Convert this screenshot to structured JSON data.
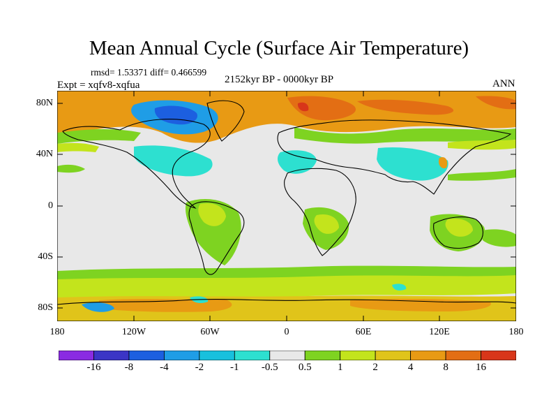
{
  "title": "Mean Annual Cycle (Surface Air Temperature)",
  "stats_text": "rmsd= 1.53371 diff= 0.466599",
  "experiment_text": "Expt = xqfv8-xqfua",
  "period_text": "2152kyr BP - 0000kyr BP",
  "season_text": "ANN",
  "lat_ticks": [
    "80N",
    "40N",
    "0",
    "40S",
    "80S"
  ],
  "lon_ticks": [
    "180",
    "120W",
    "60W",
    "0",
    "60E",
    "120E",
    "180"
  ],
  "colorbar": {
    "labels": [
      "-16",
      "-8",
      "-4",
      "-2",
      "-1",
      "-0.5",
      "0.5",
      "1",
      "2",
      "4",
      "8",
      "16"
    ],
    "colors": [
      "#8a2be2",
      "#3b35c6",
      "#1c5fe0",
      "#1f9de6",
      "#18c0dd",
      "#2de0d0",
      "#e8e8e8",
      "#7ed321",
      "#c3e41c",
      "#e0c41a",
      "#e89a14",
      "#e36e14",
      "#d8361a"
    ]
  },
  "colors": {
    "land_background": "#e8e8e8",
    "coastline": "#000000"
  }
}
